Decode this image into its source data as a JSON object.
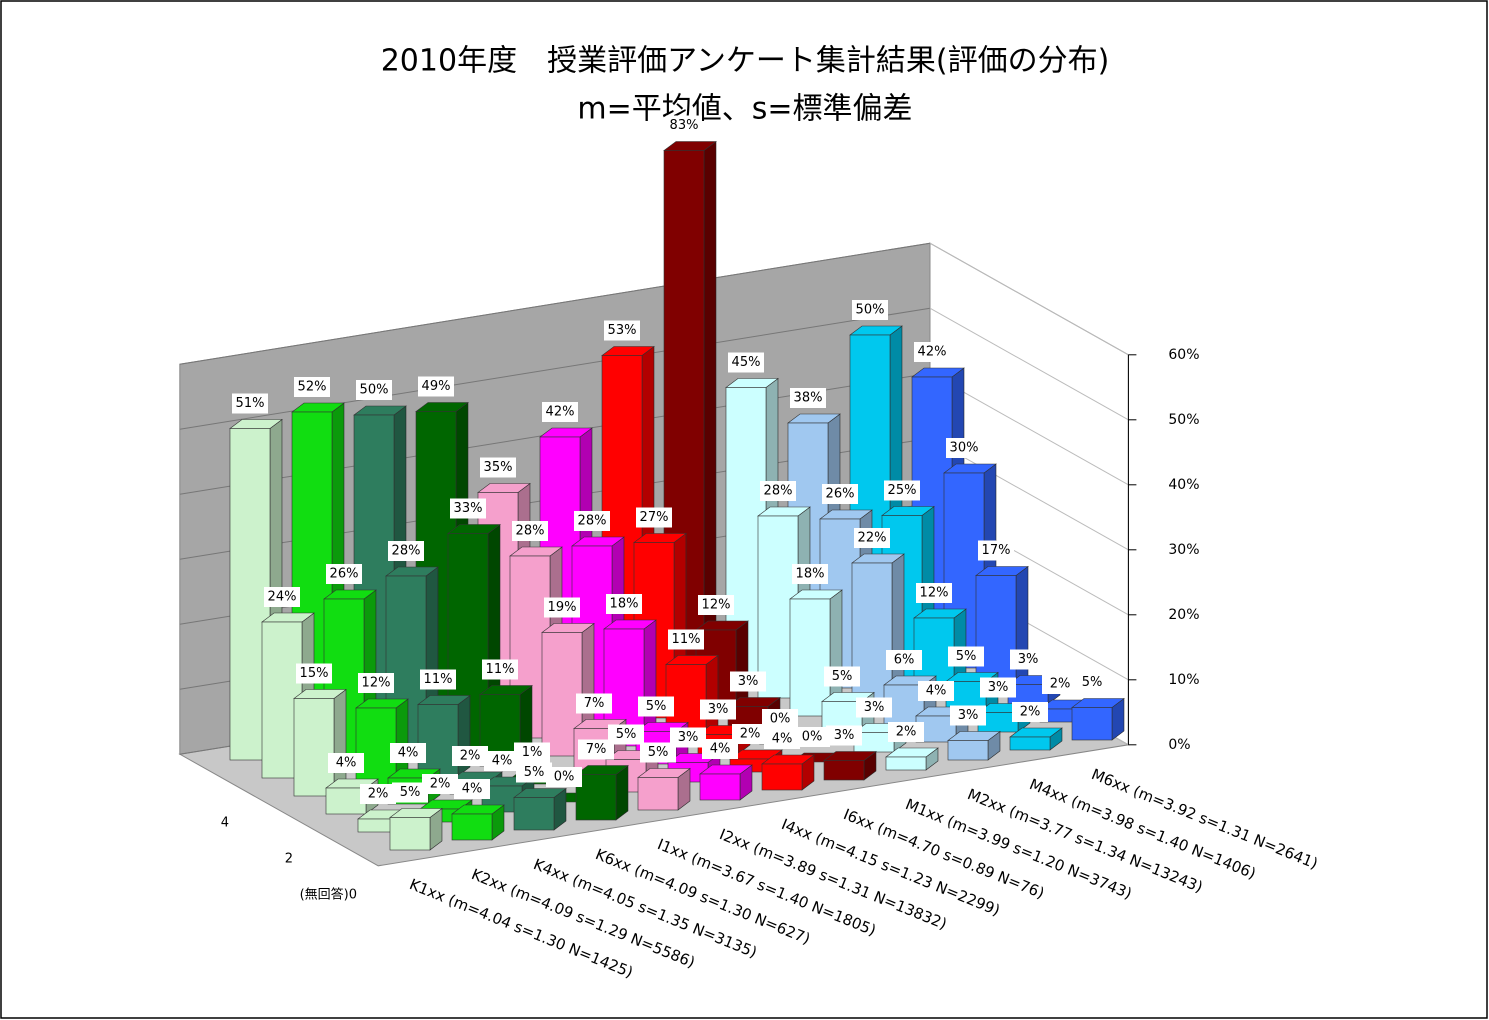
{
  "chart_data": {
    "type": "bar3d",
    "title": "2010年度　授業評価アンケート集計結果(評価の分布)",
    "subtitle": "m=平均値、s=標準偏差",
    "categories": [
      "K1xx (m=4.04 s=1.30 N=1425)",
      "K2xx (m=4.09 s=1.29 N=5586)",
      "K4xx (m=4.05 s=1.35 N=3135)",
      "K6xx (m=4.09 s=1.30 N=627)",
      "I1xx (m=3.67 s=1.40 N=1805)",
      "I2xx (m=3.89 s=1.31 N=13832)",
      "I4xx (m=4.15 s=1.23 N=2299)",
      "I6xx (m=4.70 s=0.89 N=76)",
      "M1xx (m=3.99 s=1.20 N=3743)",
      "M2xx (m=3.77 s=1.34 N=13243)",
      "M4xx (m=3.98 s=1.40 N=1406)",
      "M6xx (m=3.92 s=1.31 N=2641)"
    ],
    "colors": [
      "#ccf2cc",
      "#11dd11",
      "#2e7d5e",
      "#006600",
      "#f5a0cc",
      "#ff00ff",
      "#ff0000",
      "#800000",
      "#ccffff",
      "#a0c8f0",
      "#00c8ee",
      "#3366ff"
    ],
    "depth_categories": [
      null,
      "4",
      null,
      "2",
      null,
      "(無回答)0"
    ],
    "series": [
      {
        "values": [
          51,
          52,
          50,
          49,
          35,
          42,
          53,
          83,
          45,
          38,
          50,
          42
        ],
        "value_labels": [
          "51%",
          "52%",
          "50%",
          "49%",
          "35%",
          "42%",
          "53%",
          "83%",
          "45%",
          "38%",
          "50%",
          "42%"
        ]
      },
      {
        "values": [
          24,
          26,
          28,
          33,
          28,
          28,
          27,
          12,
          28,
          26,
          25,
          30
        ],
        "value_labels": [
          "24%",
          "26%",
          "28%",
          "33%",
          "28%",
          "28%",
          "27%",
          "12%",
          "28%",
          "26%",
          "25%",
          "30%"
        ]
      },
      {
        "values": [
          15,
          12,
          11,
          11,
          19,
          18,
          11,
          3,
          18,
          22,
          12,
          17
        ],
        "value_labels": [
          "15%",
          "12%",
          "11%",
          "11%",
          "19%",
          "18%",
          "11%",
          "3%",
          "18%",
          "22%",
          "12%",
          "17%"
        ]
      },
      {
        "values": [
          4,
          4,
          2,
          1,
          7,
          5,
          3,
          0,
          5,
          6,
          5,
          3
        ],
        "value_labels": [
          "4%",
          "4%",
          "2%",
          "1%",
          "7%",
          "5%",
          "3%",
          "0%",
          "5%",
          "6%",
          "5%",
          "3%"
        ]
      },
      {
        "values": [
          2,
          2,
          4,
          0,
          5,
          3,
          2,
          0,
          3,
          4,
          3,
          2
        ],
        "value_labels": [
          "2%",
          "2%",
          "4%",
          "0%",
          "5%",
          "3%",
          "2%",
          "0%",
          "3%",
          "4%",
          "3%",
          "2%"
        ]
      },
      {
        "values": [
          5,
          4,
          5,
          7,
          5,
          4,
          4,
          3,
          2,
          3,
          2,
          5
        ],
        "value_labels": [
          "5%",
          "4%",
          "5%",
          "7%",
          "5%",
          "4%",
          "4%",
          "3%",
          "2%",
          "3%",
          "2%",
          "5%"
        ]
      }
    ],
    "ylim": [
      0,
      60
    ],
    "yticks": [
      {
        "value": 0,
        "label": "0%"
      },
      {
        "value": 10,
        "label": "10%"
      },
      {
        "value": 20,
        "label": "20%"
      },
      {
        "value": 30,
        "label": "30%"
      },
      {
        "value": 40,
        "label": "40%"
      },
      {
        "value": 50,
        "label": "50%"
      },
      {
        "value": 60,
        "label": "60%"
      }
    ],
    "grid": true
  }
}
